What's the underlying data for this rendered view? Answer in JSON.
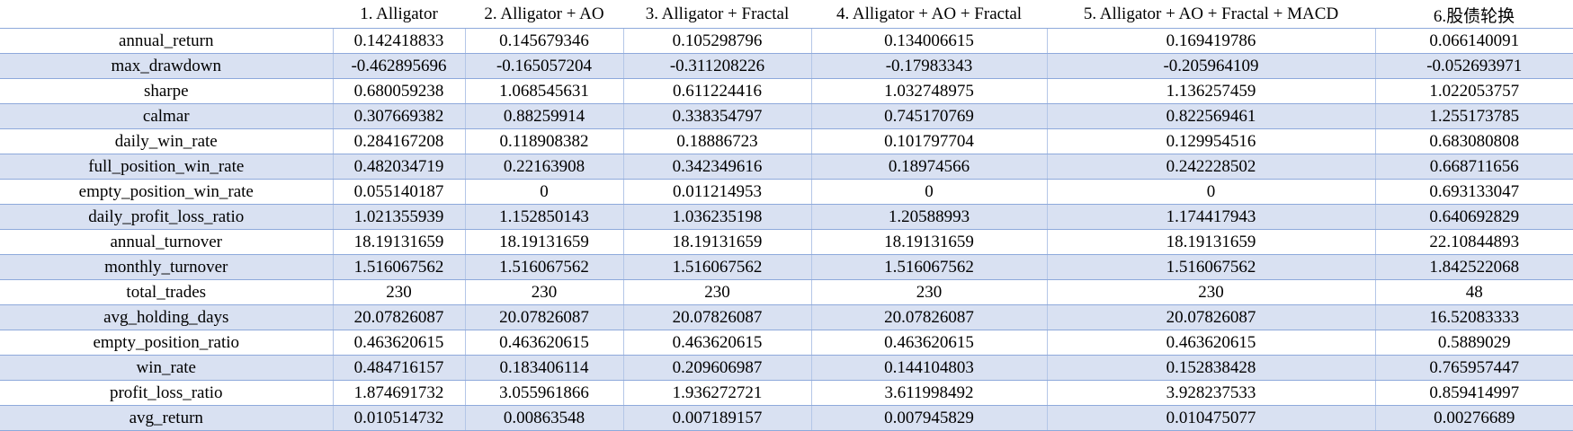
{
  "table": {
    "corner": "",
    "headers": [
      "1. Alligator",
      "2. Alligator + AO",
      "3. Alligator + Fractal",
      "4. Alligator + AO + Fractal",
      "5. Alligator + AO + Fractal + MACD",
      "6.股债轮换"
    ],
    "rows": [
      {
        "metric": "annual_return",
        "values": [
          "0.142418833",
          "0.145679346",
          "0.105298796",
          "0.134006615",
          "0.169419786",
          "0.066140091"
        ]
      },
      {
        "metric": "max_drawdown",
        "values": [
          "-0.462895696",
          "-0.165057204",
          "-0.311208226",
          "-0.17983343",
          "-0.205964109",
          "-0.052693971"
        ]
      },
      {
        "metric": "sharpe",
        "values": [
          "0.680059238",
          "1.068545631",
          "0.611224416",
          "1.032748975",
          "1.136257459",
          "1.022053757"
        ]
      },
      {
        "metric": "calmar",
        "values": [
          "0.307669382",
          "0.88259914",
          "0.338354797",
          "0.745170769",
          "0.822569461",
          "1.255173785"
        ]
      },
      {
        "metric": "daily_win_rate",
        "values": [
          "0.284167208",
          "0.118908382",
          "0.18886723",
          "0.101797704",
          "0.129954516",
          "0.683080808"
        ]
      },
      {
        "metric": "full_position_win_rate",
        "values": [
          "0.482034719",
          "0.22163908",
          "0.342349616",
          "0.18974566",
          "0.242228502",
          "0.668711656"
        ]
      },
      {
        "metric": "empty_position_win_rate",
        "values": [
          "0.055140187",
          "0",
          "0.011214953",
          "0",
          "0",
          "0.693133047"
        ]
      },
      {
        "metric": "daily_profit_loss_ratio",
        "values": [
          "1.021355939",
          "1.152850143",
          "1.036235198",
          "1.20588993",
          "1.174417943",
          "0.640692829"
        ]
      },
      {
        "metric": "annual_turnover",
        "values": [
          "18.19131659",
          "18.19131659",
          "18.19131659",
          "18.19131659",
          "18.19131659",
          "22.10844893"
        ]
      },
      {
        "metric": "monthly_turnover",
        "values": [
          "1.516067562",
          "1.516067562",
          "1.516067562",
          "1.516067562",
          "1.516067562",
          "1.842522068"
        ]
      },
      {
        "metric": "total_trades",
        "values": [
          "230",
          "230",
          "230",
          "230",
          "230",
          "48"
        ]
      },
      {
        "metric": "avg_holding_days",
        "values": [
          "20.07826087",
          "20.07826087",
          "20.07826087",
          "20.07826087",
          "20.07826087",
          "16.52083333"
        ]
      },
      {
        "metric": "empty_position_ratio",
        "values": [
          "0.463620615",
          "0.463620615",
          "0.463620615",
          "0.463620615",
          "0.463620615",
          "0.5889029"
        ]
      },
      {
        "metric": "win_rate",
        "values": [
          "0.484716157",
          "0.183406114",
          "0.209606987",
          "0.144104803",
          "0.152838428",
          "0.765957447"
        ]
      },
      {
        "metric": "profit_loss_ratio",
        "values": [
          "1.874691732",
          "3.055961866",
          "1.936272721",
          "3.611998492",
          "3.928237533",
          "0.859414997"
        ]
      },
      {
        "metric": "avg_return",
        "values": [
          "0.010514732",
          "0.00863548",
          "0.007189157",
          "0.007945829",
          "0.010475077",
          "0.00276689"
        ]
      }
    ]
  }
}
